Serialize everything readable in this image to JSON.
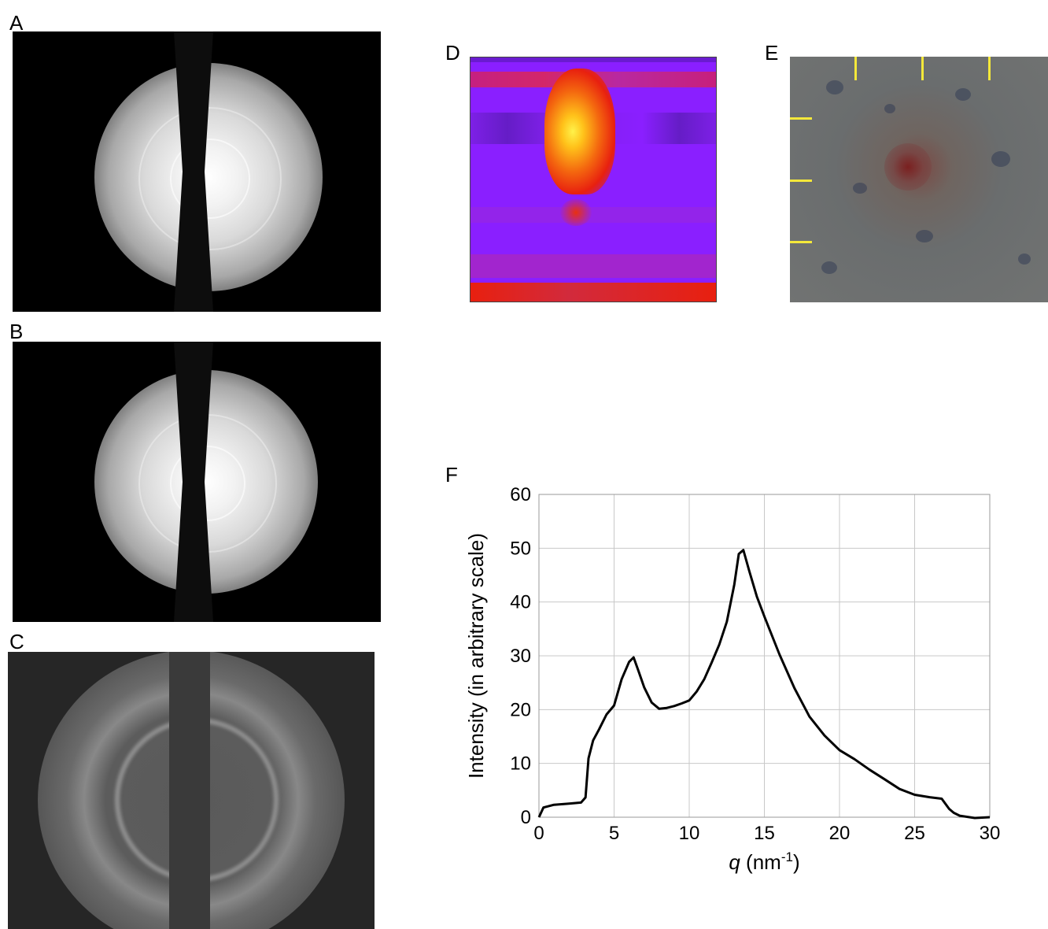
{
  "panels": {
    "a": "A",
    "b": "B",
    "c": "C",
    "d": "D",
    "e": "E",
    "f": "F"
  },
  "colors": {
    "heat_background": "#8a1fff",
    "heat_hot": "#ffe800",
    "heat_warm": "#e8200f",
    "scale_tick": "#f4e83a",
    "curve": "#000000",
    "grid": "#c8c8c8"
  },
  "chart_data": {
    "type": "line",
    "xlabel_italic": "q",
    "xlabel_rest": " (nm",
    "xlabel_sup": "-1",
    "xlabel_close": ")",
    "ylabel": "Intensity (in arbitrary scale)",
    "xlim": [
      0,
      30
    ],
    "ylim": [
      0,
      60
    ],
    "x_ticks": [
      "0",
      "5",
      "10",
      "15",
      "20",
      "25",
      "30"
    ],
    "y_ticks": [
      "0",
      "10",
      "20",
      "30",
      "40",
      "50",
      "60"
    ],
    "grid": true,
    "series": [
      {
        "x": [
          0,
          0.3,
          1,
          2,
          2.8,
          3.1,
          3.3,
          3.6,
          4,
          4.5,
          5,
          5.5,
          6,
          6.3,
          6.6,
          7,
          7.5,
          8,
          8.5,
          9,
          9.5,
          10,
          10.5,
          11,
          11.5,
          12,
          12.5,
          13,
          13.3,
          13.6,
          14,
          14.5,
          15,
          16,
          17,
          18,
          19,
          20,
          21,
          22,
          23,
          24,
          25,
          26,
          26.8,
          27.3,
          27.6,
          28,
          29,
          30
        ],
        "y": [
          0,
          1.5,
          2,
          2.5,
          3,
          4,
          11,
          14,
          16,
          19,
          21,
          26,
          29,
          29.5,
          27,
          24,
          21.5,
          20.5,
          20.5,
          20.5,
          20.8,
          21.5,
          23.5,
          26,
          29,
          32,
          36,
          43,
          49,
          50,
          46,
          41,
          37,
          30,
          24,
          19,
          15.5,
          12.5,
          10.5,
          8.5,
          7,
          5.5,
          4.5,
          3.8,
          3.2,
          1.2,
          0.7,
          0.5,
          0.2,
          0
        ]
      }
    ]
  }
}
